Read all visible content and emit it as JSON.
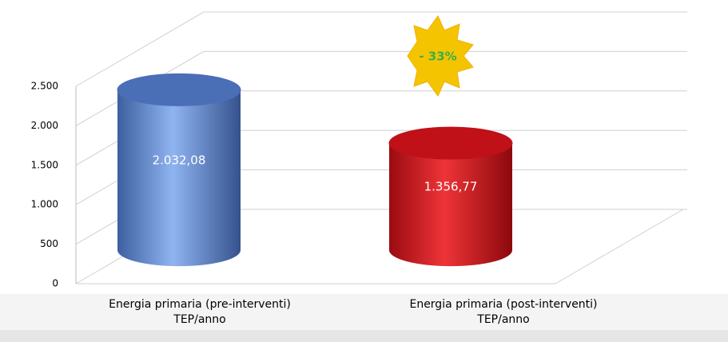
{
  "chart_data": {
    "type": "cylinder",
    "categories": [
      [
        "Energia primaria (pre-interventi)",
        "TEP/anno"
      ],
      [
        "Energia primaria (post-interventi)",
        "TEP/anno"
      ]
    ],
    "values": [
      2032.08,
      1356.77
    ],
    "value_labels": [
      "2.032,08",
      "1.356,77"
    ],
    "colors": [
      "#4b6fb6",
      "#c01018"
    ],
    "ylim": [
      0,
      2500
    ],
    "yticks": [
      0,
      500,
      {
        "value": 1000,
        "label": "1.000"
      },
      {
        "value": 1500,
        "label": "1.500"
      },
      {
        "value": 2000,
        "label": "2.000"
      },
      {
        "value": 2500,
        "label": "2.500"
      }
    ],
    "grid": true,
    "annotation": "- 33%"
  }
}
